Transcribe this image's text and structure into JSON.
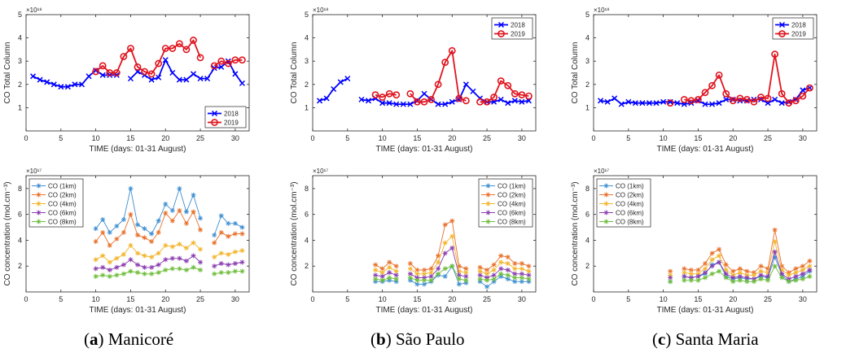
{
  "colors": {
    "y2018": "#0000ff",
    "y2019": "#e0141e",
    "co1": "#3f8fd1",
    "co2": "#e8702a",
    "co4": "#f2b52a",
    "co6": "#8b3db0",
    "co8": "#6ebd3a"
  },
  "captions": [
    {
      "letter": "a",
      "text": "Manicoré"
    },
    {
      "letter": "b",
      "text": "São Paulo"
    },
    {
      "letter": "c",
      "text": "Santa Maria"
    }
  ],
  "chart_data": [
    {
      "type": "line",
      "panel": "a-top",
      "xlabel": "TIME (days: 01-31 August)",
      "ylabel": "CO Total Column",
      "exponent": "×10¹⁸",
      "xlim": [
        0,
        32
      ],
      "ylim": [
        0,
        5
      ],
      "xticks": [
        0,
        5,
        10,
        15,
        20,
        25,
        30
      ],
      "yticks": [
        1,
        2,
        3,
        4,
        5
      ],
      "legend": "bottom-right",
      "series": [
        {
          "name": "2018",
          "color_key": "y2018",
          "marker": "x",
          "x": [
            1,
            2,
            3,
            4,
            5,
            6,
            7,
            8,
            9,
            10,
            11,
            12,
            13,
            14,
            15,
            16,
            17,
            18,
            19,
            20,
            21,
            22,
            23,
            24,
            25,
            26,
            27,
            28,
            29,
            30,
            31
          ],
          "values": [
            2.35,
            2.2,
            2.1,
            2.0,
            1.9,
            1.9,
            2.0,
            2.0,
            2.35,
            2.6,
            2.4,
            2.4,
            2.4,
            null,
            2.25,
            2.55,
            2.4,
            2.2,
            2.3,
            3.05,
            2.5,
            2.2,
            2.2,
            2.45,
            2.25,
            2.25,
            2.7,
            2.75,
            3.0,
            2.45,
            2.05
          ]
        },
        {
          "name": "2019",
          "color_key": "y2019",
          "marker": "o",
          "x": [
            10,
            11,
            12,
            13,
            14,
            15,
            16,
            17,
            18,
            19,
            20,
            21,
            22,
            23,
            24,
            25,
            26,
            27,
            28,
            29,
            30,
            31
          ],
          "values": [
            2.55,
            2.8,
            2.5,
            2.5,
            3.2,
            3.55,
            2.75,
            2.55,
            2.45,
            2.9,
            3.55,
            3.55,
            3.75,
            3.5,
            3.9,
            3.15,
            null,
            2.8,
            3.0,
            2.9,
            3.05,
            3.05
          ]
        }
      ]
    },
    {
      "type": "line",
      "panel": "b-top",
      "xlabel": "TIME (days: 01-31 August)",
      "ylabel": "CO Total Column",
      "exponent": "×10¹⁸",
      "xlim": [
        0,
        32
      ],
      "ylim": [
        0,
        5
      ],
      "xticks": [
        0,
        5,
        10,
        15,
        20,
        25,
        30
      ],
      "yticks": [
        1,
        2,
        3,
        4,
        5
      ],
      "legend": "top-right",
      "series": [
        {
          "name": "2018",
          "color_key": "y2018",
          "marker": "x",
          "x": [
            1,
            2,
            3,
            4,
            5,
            6,
            7,
            8,
            9,
            10,
            11,
            12,
            13,
            14,
            15,
            16,
            17,
            18,
            19,
            20,
            21,
            22,
            23,
            24,
            25,
            26,
            27,
            28,
            29,
            30,
            31
          ],
          "values": [
            1.3,
            1.4,
            1.8,
            2.1,
            2.25,
            null,
            1.35,
            1.3,
            1.4,
            1.2,
            1.2,
            1.15,
            1.15,
            1.15,
            1.3,
            1.6,
            1.35,
            1.15,
            1.15,
            1.25,
            1.35,
            2.0,
            1.7,
            1.4,
            1.25,
            1.25,
            1.35,
            1.2,
            1.3,
            1.25,
            1.3
          ]
        },
        {
          "name": "2019",
          "color_key": "y2019",
          "marker": "o",
          "x": [
            9,
            10,
            11,
            12,
            13,
            14,
            15,
            16,
            17,
            18,
            19,
            20,
            21,
            22,
            23,
            24,
            25,
            26,
            27,
            28,
            29,
            30,
            31
          ],
          "values": [
            1.55,
            1.45,
            1.6,
            1.55,
            null,
            1.6,
            1.25,
            1.25,
            1.35,
            2.0,
            2.95,
            3.45,
            1.4,
            1.3,
            null,
            1.25,
            1.25,
            1.45,
            2.15,
            1.95,
            1.6,
            1.55,
            1.5
          ]
        }
      ]
    },
    {
      "type": "line",
      "panel": "c-top",
      "xlabel": "TIME (days: 01-31 August)",
      "ylabel": "CO Total Column",
      "exponent": "×10¹⁸",
      "xlim": [
        0,
        32
      ],
      "ylim": [
        0,
        5
      ],
      "xticks": [
        0,
        5,
        10,
        15,
        20,
        25,
        30
      ],
      "yticks": [
        1,
        2,
        3,
        4,
        5
      ],
      "legend": "top-right",
      "series": [
        {
          "name": "2018",
          "color_key": "y2018",
          "marker": "x",
          "x": [
            1,
            2,
            3,
            4,
            5,
            6,
            7,
            8,
            9,
            10,
            11,
            12,
            13,
            14,
            15,
            16,
            17,
            18,
            19,
            20,
            21,
            22,
            23,
            24,
            25,
            26,
            27,
            28,
            29,
            30,
            31
          ],
          "values": [
            1.3,
            1.25,
            1.4,
            1.15,
            1.25,
            1.2,
            1.2,
            1.2,
            1.2,
            1.25,
            1.25,
            1.2,
            1.15,
            1.2,
            1.3,
            1.15,
            1.15,
            1.2,
            1.35,
            1.35,
            1.3,
            1.3,
            1.35,
            1.35,
            1.2,
            1.35,
            1.2,
            1.25,
            1.35,
            1.75,
            1.85
          ]
        },
        {
          "name": "2019",
          "color_key": "y2019",
          "marker": "o",
          "x": [
            11,
            12,
            13,
            14,
            15,
            16,
            17,
            18,
            19,
            20,
            21,
            22,
            23,
            24,
            25,
            26,
            27,
            28,
            29,
            30,
            31
          ],
          "values": [
            1.2,
            null,
            1.35,
            1.3,
            1.35,
            1.65,
            1.95,
            2.4,
            1.6,
            1.3,
            1.4,
            1.35,
            1.25,
            1.45,
            1.4,
            3.3,
            1.6,
            1.2,
            1.3,
            1.5,
            1.85
          ]
        }
      ]
    },
    {
      "type": "line",
      "panel": "a-bottom",
      "xlabel": "TIME (days: 01-31 August)",
      "ylabel": "CO concentration (mol.cm⁻³)",
      "exponent": "×10¹⁷",
      "xlim": [
        0,
        32
      ],
      "ylim": [
        0,
        9
      ],
      "xticks": [
        0,
        5,
        10,
        15,
        20,
        25,
        30
      ],
      "yticks": [
        2,
        4,
        6,
        8
      ],
      "legend": "top-left",
      "x": [
        10,
        11,
        12,
        13,
        14,
        15,
        16,
        17,
        18,
        19,
        20,
        21,
        22,
        23,
        24,
        25,
        26,
        27,
        28,
        29,
        30,
        31
      ],
      "series": [
        {
          "name": "CO (1km)",
          "color_key": "co1",
          "values": [
            4.9,
            5.6,
            4.6,
            5.1,
            5.6,
            8.0,
            5.2,
            4.9,
            4.5,
            5.5,
            6.8,
            6.3,
            8.0,
            6.2,
            7.5,
            5.7,
            null,
            4.4,
            5.9,
            5.3,
            5.3,
            5.0
          ]
        },
        {
          "name": "CO (2km)",
          "color_key": "co2",
          "values": [
            3.9,
            4.6,
            3.6,
            4.1,
            4.6,
            6.0,
            4.4,
            4.2,
            3.9,
            4.6,
            6.1,
            5.5,
            6.3,
            5.3,
            6.2,
            4.8,
            null,
            3.8,
            4.6,
            4.3,
            4.5,
            4.5
          ]
        },
        {
          "name": "CO (4km)",
          "color_key": "co4",
          "values": [
            2.5,
            2.8,
            2.3,
            2.6,
            2.9,
            3.6,
            3.0,
            2.8,
            2.7,
            3.0,
            3.6,
            3.5,
            3.7,
            3.4,
            3.8,
            3.3,
            null,
            2.7,
            3.0,
            2.9,
            3.1,
            3.2
          ]
        },
        {
          "name": "CO (6km)",
          "color_key": "co6",
          "values": [
            1.8,
            1.9,
            1.7,
            1.9,
            2.1,
            2.5,
            2.1,
            1.9,
            1.9,
            2.1,
            2.5,
            2.6,
            2.6,
            2.4,
            2.8,
            2.3,
            null,
            2.0,
            2.2,
            2.1,
            2.2,
            2.3
          ]
        },
        {
          "name": "CO (8km)",
          "color_key": "co8",
          "values": [
            1.2,
            1.3,
            1.2,
            1.3,
            1.4,
            1.6,
            1.5,
            1.4,
            1.4,
            1.5,
            1.7,
            1.8,
            1.8,
            1.7,
            1.9,
            1.7,
            null,
            1.4,
            1.5,
            1.5,
            1.6,
            1.6
          ]
        }
      ]
    },
    {
      "type": "line",
      "panel": "b-bottom",
      "xlabel": "TIME (days: 01-31 August)",
      "ylabel": "CO concentration (mol.cm⁻³)",
      "exponent": "×10¹⁷",
      "xlim": [
        0,
        32
      ],
      "ylim": [
        0,
        9
      ],
      "xticks": [
        0,
        5,
        10,
        15,
        20,
        25,
        30
      ],
      "yticks": [
        2,
        4,
        6,
        8
      ],
      "legend": "top-right",
      "x": [
        9,
        10,
        11,
        12,
        13,
        14,
        15,
        16,
        17,
        18,
        19,
        20,
        21,
        22,
        23,
        24,
        25,
        26,
        27,
        28,
        29,
        30,
        31
      ],
      "series": [
        {
          "name": "CO (1km)",
          "color_key": "co1",
          "values": [
            0.8,
            0.8,
            0.9,
            0.8,
            null,
            0.9,
            0.6,
            0.6,
            0.8,
            1.3,
            1.2,
            2.0,
            0.6,
            0.7,
            null,
            0.8,
            0.4,
            0.8,
            1.2,
            1.0,
            0.8,
            0.8,
            0.8
          ]
        },
        {
          "name": "CO (2km)",
          "color_key": "co2",
          "values": [
            2.1,
            1.8,
            2.3,
            2.0,
            null,
            2.2,
            1.7,
            1.7,
            1.8,
            2.8,
            5.2,
            5.5,
            2.0,
            1.8,
            null,
            1.9,
            1.7,
            2.1,
            2.8,
            2.7,
            2.2,
            2.2,
            2.0
          ]
        },
        {
          "name": "CO (4km)",
          "color_key": "co4",
          "values": [
            1.7,
            1.5,
            1.9,
            1.6,
            null,
            1.8,
            1.4,
            1.4,
            1.5,
            2.3,
            3.8,
            4.3,
            1.6,
            1.5,
            null,
            1.6,
            1.4,
            1.7,
            2.3,
            2.2,
            1.8,
            1.8,
            1.6
          ]
        },
        {
          "name": "CO (6km)",
          "color_key": "co6",
          "values": [
            1.3,
            1.2,
            1.5,
            1.3,
            null,
            1.4,
            1.1,
            1.1,
            1.2,
            1.8,
            3.0,
            3.4,
            1.3,
            1.2,
            null,
            1.3,
            1.1,
            1.3,
            1.8,
            1.7,
            1.4,
            1.4,
            1.3
          ]
        },
        {
          "name": "CO (8km)",
          "color_key": "co8",
          "values": [
            1.0,
            0.9,
            1.1,
            1.0,
            null,
            1.1,
            0.9,
            0.9,
            0.9,
            1.4,
            1.8,
            2.0,
            1.0,
            0.9,
            null,
            1.0,
            0.9,
            1.0,
            1.4,
            1.3,
            1.1,
            1.1,
            1.0
          ]
        }
      ]
    },
    {
      "type": "line",
      "panel": "c-bottom",
      "xlabel": "TIME (days: 01-31 August)",
      "ylabel": "CO concentration (mol.cm⁻³)",
      "exponent": "×10¹⁷",
      "xlim": [
        0,
        32
      ],
      "ylim": [
        0,
        9
      ],
      "xticks": [
        0,
        5,
        10,
        15,
        20,
        25,
        30
      ],
      "yticks": [
        2,
        4,
        6,
        8
      ],
      "legend": "top-left",
      "x": [
        11,
        12,
        13,
        14,
        15,
        16,
        17,
        18,
        19,
        20,
        21,
        22,
        23,
        24,
        25,
        26,
        27,
        28,
        29,
        30,
        31
      ],
      "series": [
        {
          "name": "CO (1km)",
          "color_key": "co1",
          "values": [
            0.8,
            null,
            1.2,
            1.1,
            1.2,
            1.4,
            2.1,
            2.3,
            1.2,
            1.0,
            1.1,
            1.0,
            1.0,
            1.2,
            1.1,
            2.7,
            1.3,
            0.8,
            1.0,
            1.2,
            1.6
          ]
        },
        {
          "name": "CO (2km)",
          "color_key": "co2",
          "values": [
            1.6,
            null,
            1.8,
            1.7,
            1.7,
            2.2,
            3.0,
            3.3,
            2.1,
            1.6,
            1.8,
            1.6,
            1.5,
            2.0,
            1.8,
            4.8,
            2.0,
            1.5,
            1.8,
            2.0,
            2.4
          ]
        },
        {
          "name": "CO (4km)",
          "color_key": "co4",
          "values": [
            1.3,
            null,
            1.5,
            1.4,
            1.4,
            1.8,
            2.5,
            2.8,
            1.7,
            1.3,
            1.5,
            1.3,
            1.3,
            1.6,
            1.5,
            3.9,
            1.7,
            1.3,
            1.5,
            1.7,
            2.0
          ]
        },
        {
          "name": "CO (6km)",
          "color_key": "co6",
          "values": [
            1.1,
            null,
            1.2,
            1.1,
            1.2,
            1.5,
            2.0,
            2.3,
            1.4,
            1.1,
            1.2,
            1.1,
            1.0,
            1.3,
            1.2,
            3.1,
            1.4,
            1.0,
            1.2,
            1.4,
            1.7
          ]
        },
        {
          "name": "CO (8km)",
          "color_key": "co8",
          "values": [
            0.8,
            null,
            0.9,
            0.9,
            0.9,
            1.1,
            1.4,
            1.6,
            1.1,
            0.8,
            0.9,
            0.8,
            0.8,
            1.0,
            0.9,
            2.0,
            1.1,
            0.8,
            0.9,
            1.0,
            1.2
          ]
        }
      ]
    }
  ]
}
